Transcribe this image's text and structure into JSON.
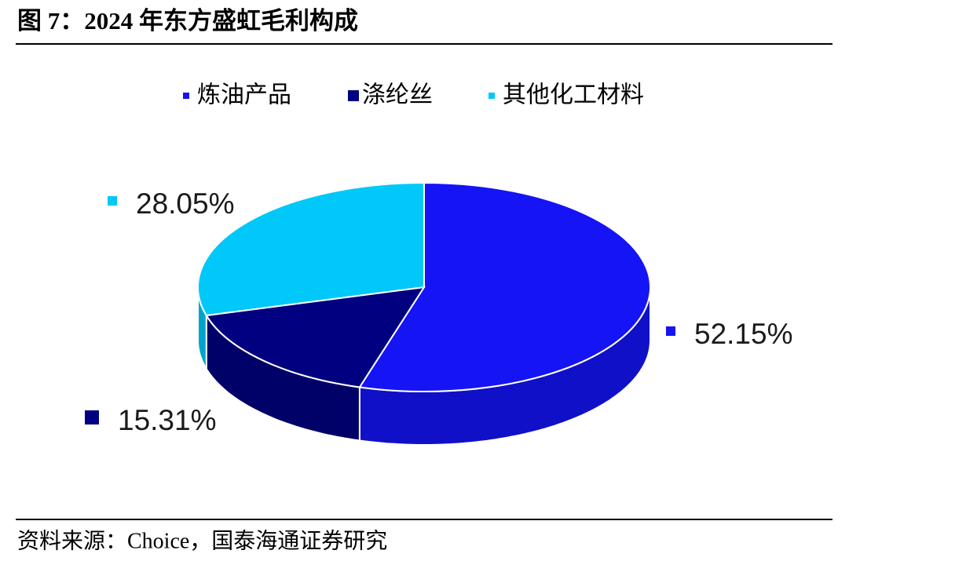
{
  "chart_data": {
    "type": "pie3d",
    "title": "图 7：2024 年东方盛虹毛利构成",
    "source": "资料来源：Choice，国泰海通证券研究",
    "categories": [
      "炼油产品",
      "涤纶丝",
      "其他化工材料"
    ],
    "values": [
      52.15,
      15.31,
      28.05
    ],
    "value_labels": [
      "52.15%",
      "15.31%",
      "28.05%"
    ],
    "colors": [
      "#1414f5",
      "#000080",
      "#00c8f8"
    ]
  }
}
